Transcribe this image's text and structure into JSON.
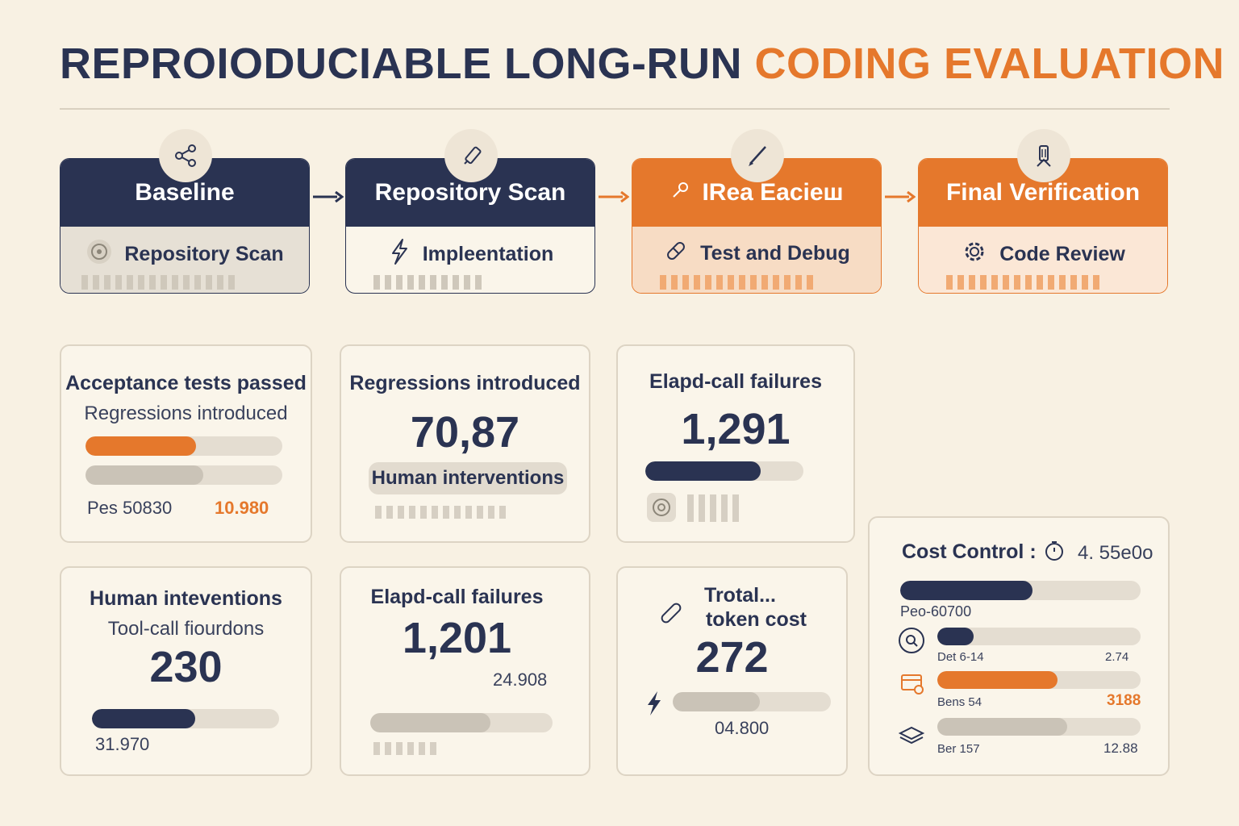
{
  "title": {
    "part1": "REPROIODUCIABLE LONG-RUN",
    "part2": "CODING EVALUATION"
  },
  "colors": {
    "navy": "#2a3352",
    "orange": "#e5782c",
    "background": "#f8f1e3"
  },
  "pipeline": [
    {
      "head": "Baseline",
      "sub": "Repository Scan",
      "icon": "share-icon",
      "sub_icon": "target-icon"
    },
    {
      "head": "Repository Scan",
      "sub": "Impleentation",
      "icon": "marker-icon",
      "sub_icon": "lightning-icon"
    },
    {
      "head": "IReа Eacieш",
      "sub": "Test and Debug",
      "icon": "pen-icon",
      "sub_icon": "pill-icon"
    },
    {
      "head": "Final Verification",
      "sub": "Code Review",
      "icon": "flask-icon",
      "sub_icon": "gear-icon"
    }
  ],
  "cards": {
    "acceptance": {
      "title": "Acceptance tests passed",
      "subtitle": "Regressions introduced",
      "bar1": 0.56,
      "bar2": 0.6,
      "left_value": "Pes 50830",
      "right_value": "10.980"
    },
    "regressions": {
      "title": "Regressions introduced",
      "value": "70,87",
      "pill": "Human interventions"
    },
    "elapd_top": {
      "title": "Elapd-call failures",
      "value": "1,291",
      "bar": 0.73
    },
    "human": {
      "title": "Human inteventions",
      "subtitle": "Tool-call fiourdons",
      "value": "230",
      "bar": 0.55,
      "bottom_value": "31.970"
    },
    "elapd_bottom": {
      "title": "Elapd-call failures",
      "value": "1,201",
      "side_value": "24.908",
      "bar": 0.66
    },
    "token": {
      "title_line1": "Trotal...",
      "title_line2": "token cost",
      "value": "272",
      "bar": 0.55,
      "bottom_value": "04.800"
    },
    "cost": {
      "title": "Cost Control :",
      "title_value": "4. 55e0o",
      "main_bar": 0.55,
      "main_label": "Peo-60700",
      "rows": [
        {
          "label": "Det 6-14",
          "value": "2.74",
          "bar": 0.18,
          "color": "navy",
          "icon": "search-icon"
        },
        {
          "label": "Bens 54",
          "value": "3188",
          "bar": 0.59,
          "color": "orange",
          "icon": "dashboard-icon"
        },
        {
          "label": "Ber 157",
          "value": "12.88",
          "bar": 0.64,
          "color": "gray",
          "icon": "layers-icon"
        }
      ]
    }
  }
}
